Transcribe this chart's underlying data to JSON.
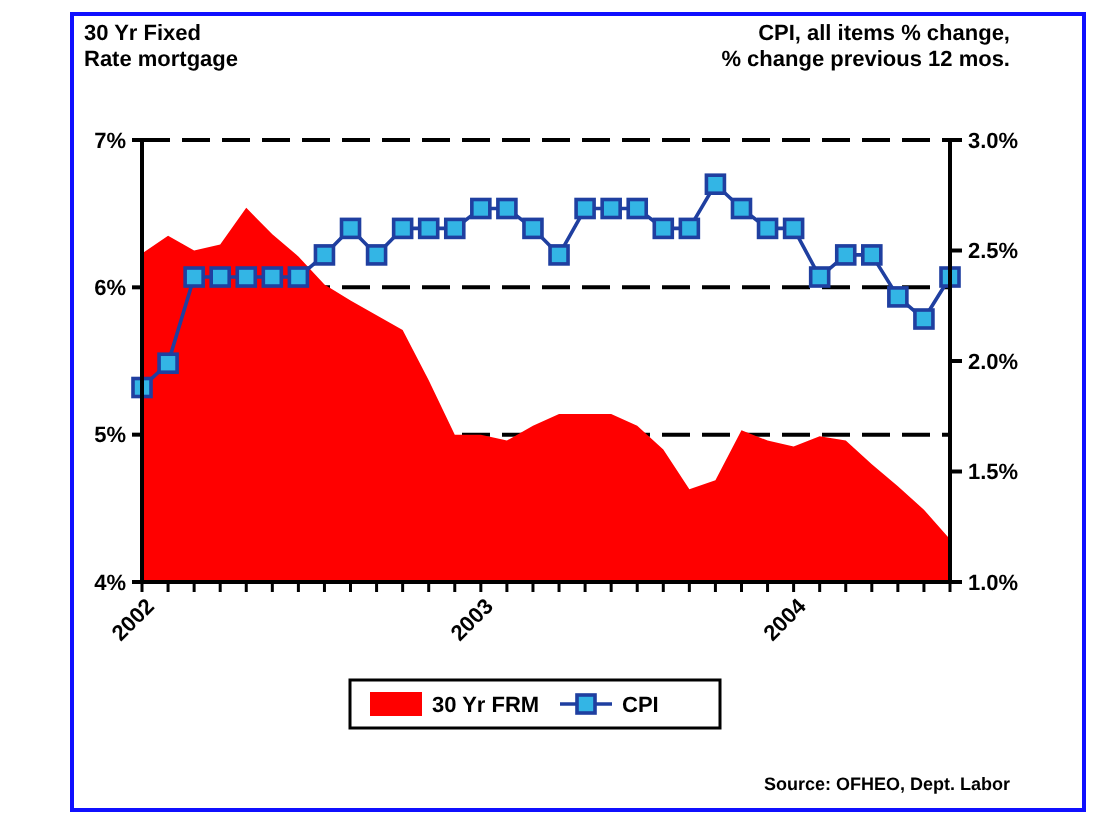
{
  "chart_data": {
    "type": "area",
    "ylabel": "30 Yr Fixed\nRate mortgage",
    "y2label": "CPI, all items % change,\n% change previous 12 mos.",
    "categories": [
      "2002",
      null,
      null,
      null,
      null,
      null,
      null,
      null,
      null,
      null,
      null,
      null,
      null,
      "2003",
      null,
      null,
      null,
      null,
      null,
      null,
      null,
      null,
      null,
      null,
      null,
      "2004",
      null,
      null,
      null,
      null,
      null,
      null
    ],
    "series": [
      {
        "name": "30 Yr FRM",
        "color": "#ff0000",
        "values": [
          6.23,
          6.35,
          6.25,
          6.29,
          6.54,
          6.36,
          6.21,
          6.02,
          5.91,
          5.81,
          5.71,
          5.37,
          5.0,
          5.0,
          4.96,
          5.06,
          5.14,
          5.14,
          5.14,
          5.06,
          4.9,
          4.63,
          4.69,
          5.03,
          4.96,
          4.92,
          4.99,
          4.96,
          4.8,
          4.65,
          4.49,
          4.29
        ]
      },
      {
        "name": "CPI",
        "type": "line",
        "axis": "y2",
        "color": "#1f3fa0",
        "marker": "square",
        "values": [
          1.88,
          1.99,
          2.38,
          2.38,
          2.38,
          2.38,
          2.38,
          2.48,
          2.6,
          2.48,
          2.6,
          2.6,
          2.6,
          2.69,
          2.69,
          2.6,
          2.48,
          2.69,
          2.69,
          2.69,
          2.6,
          2.6,
          2.8,
          2.69,
          2.6,
          2.6,
          2.38,
          2.48,
          2.48,
          2.29,
          2.19,
          2.38
        ]
      }
    ],
    "ylim": [
      4,
      7
    ],
    "yticks": [
      {
        "value": 4,
        "label": "4%"
      },
      {
        "value": 5,
        "label": "5%"
      },
      {
        "value": 6,
        "label": "6%"
      },
      {
        "value": 7,
        "label": "7%"
      }
    ],
    "y2lim": [
      1,
      3
    ],
    "y2ticks": [
      {
        "value": 1,
        "label": "1.0%"
      },
      {
        "value": 1.5,
        "label": "1.5%"
      },
      {
        "value": 2,
        "label": "2.0%"
      },
      {
        "value": 2.5,
        "label": "2.5%"
      },
      {
        "value": 3,
        "label": "3.0%"
      }
    ],
    "grid": "y",
    "legend": "bottom",
    "annotations": [
      "Source: OFHEO, Dept. Labor"
    ]
  }
}
